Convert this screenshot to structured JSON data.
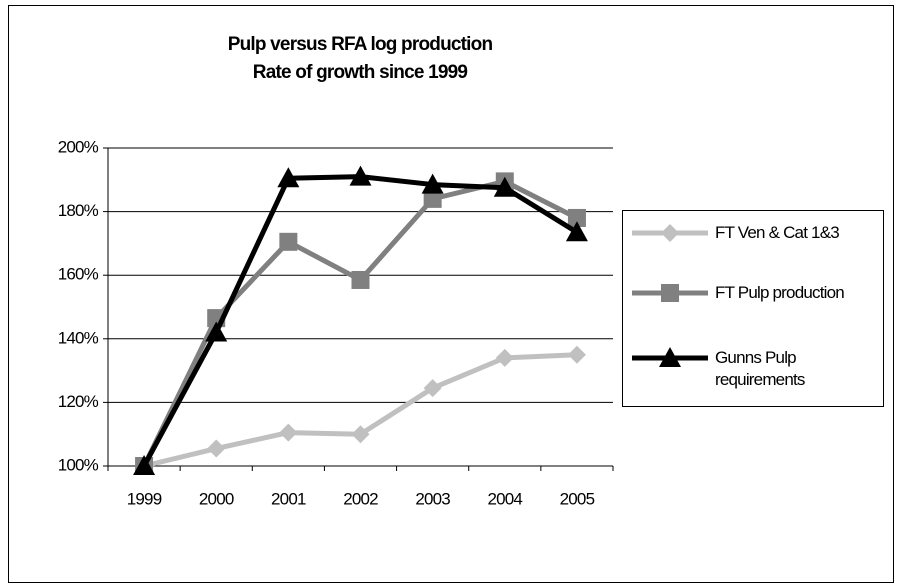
{
  "chart_data": {
    "type": "line",
    "title": "Pulp versus RFA log production",
    "subtitle": "Rate of growth since 1999",
    "categories": [
      "1999",
      "2000",
      "2001",
      "2002",
      "2003",
      "2004",
      "2005"
    ],
    "series": [
      {
        "name": "FT Ven & Cat 1&3",
        "color": "#c0c0c0",
        "marker": "diamond",
        "values": [
          100,
          105.5,
          110.5,
          110,
          124.5,
          134,
          135
        ]
      },
      {
        "name": "FT Pulp production",
        "color": "#808080",
        "marker": "square",
        "values": [
          100,
          146.5,
          170.5,
          158.5,
          184,
          189.5,
          178
        ]
      },
      {
        "name": "Gunns Pulp requirements",
        "color": "#000000",
        "marker": "triangle",
        "values": [
          100,
          142,
          190.5,
          191,
          188.5,
          187.5,
          173.5
        ]
      }
    ],
    "ylim": [
      100,
      200
    ],
    "yticks": [
      {
        "value": 100,
        "label": "100%"
      },
      {
        "value": 120,
        "label": "120%"
      },
      {
        "value": 140,
        "label": "140%"
      },
      {
        "value": 160,
        "label": "160%"
      },
      {
        "value": 180,
        "label": "180%"
      },
      {
        "value": 200,
        "label": "200%"
      }
    ],
    "grid": true,
    "legend": "right"
  }
}
